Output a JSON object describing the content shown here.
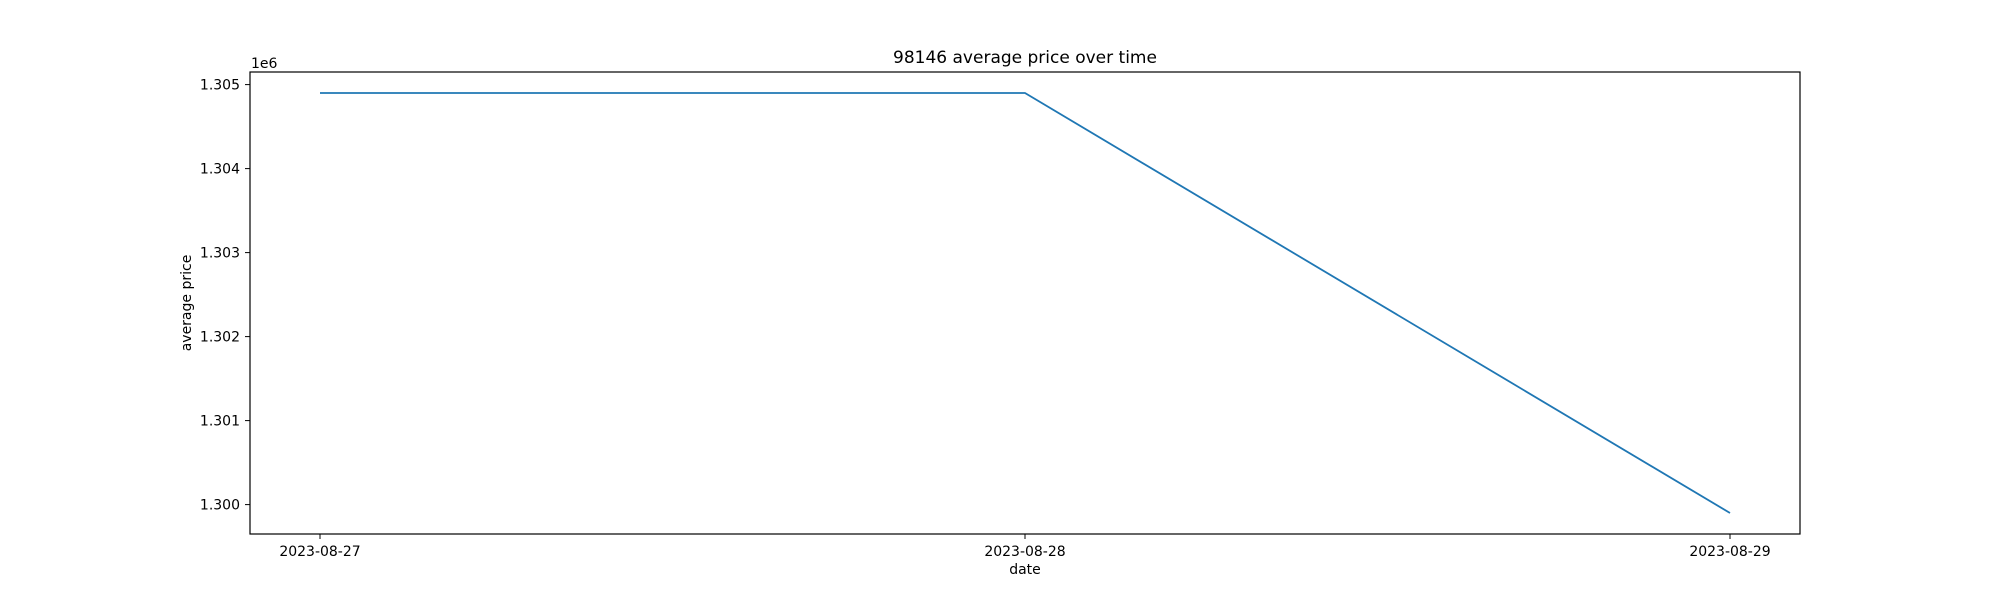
{
  "chart_data": {
    "type": "line",
    "title": "98146 average price over time",
    "xlabel": "date",
    "ylabel": "average price",
    "y_offset_label": "1e6",
    "x": [
      "2023-08-27",
      "2023-08-28",
      "2023-08-29"
    ],
    "series": [
      {
        "values": [
          1304900,
          1304900,
          1299900
        ],
        "color": "#1f77b4"
      }
    ],
    "xticks": [
      "2023-08-27",
      "2023-08-28",
      "2023-08-29"
    ],
    "yticks": [
      1.3,
      1.301,
      1.302,
      1.303,
      1.304,
      1.305
    ],
    "ytick_labels": [
      "1.300",
      "1.301",
      "1.302",
      "1.303",
      "1.304",
      "1.305"
    ],
    "ylim": [
      1299650,
      1305150
    ],
    "grid": false
  }
}
